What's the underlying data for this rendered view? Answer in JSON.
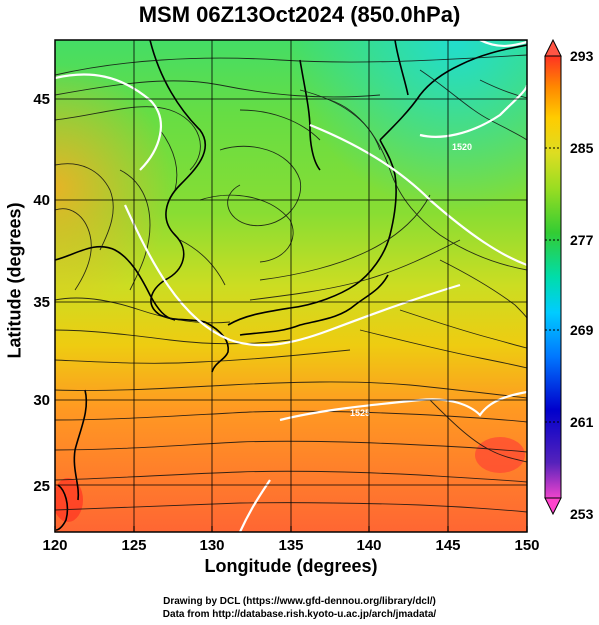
{
  "title": "MSM 06Z13Oct2024 (850.0hPa)",
  "xlabel": "Longitude (degrees)",
  "ylabel": "Latitude  (degrees)",
  "credits": [
    "Drawing by DCL (https://www.gfd-dennou.org/library/dcl/)",
    "Data from http://database.rish.kyoto-u.ac.jp/arch/jmadata/"
  ],
  "map": {
    "lon_range": [
      120,
      150
    ],
    "lat_range": [
      22.4,
      47.6
    ],
    "x_ticks": [
      "120",
      "125",
      "130",
      "135",
      "140",
      "145",
      "150"
    ],
    "y_ticks": [
      "25",
      "30",
      "35",
      "40",
      "45"
    ],
    "field": "temperature (K) with streamlines",
    "contour_labels": [
      "1520",
      "1525"
    ]
  },
  "colorbar": {
    "ticks": [
      "293",
      "285",
      "277",
      "269",
      "261",
      "253"
    ],
    "min": 253,
    "max": 293,
    "colors": [
      "#ff33cc",
      "#6633cc",
      "#0000cc",
      "#0066ff",
      "#00ccff",
      "#00ddaa",
      "#33cc33",
      "#88dd33",
      "#ccee22",
      "#ffcc00",
      "#ff8800",
      "#ff3322"
    ]
  }
}
